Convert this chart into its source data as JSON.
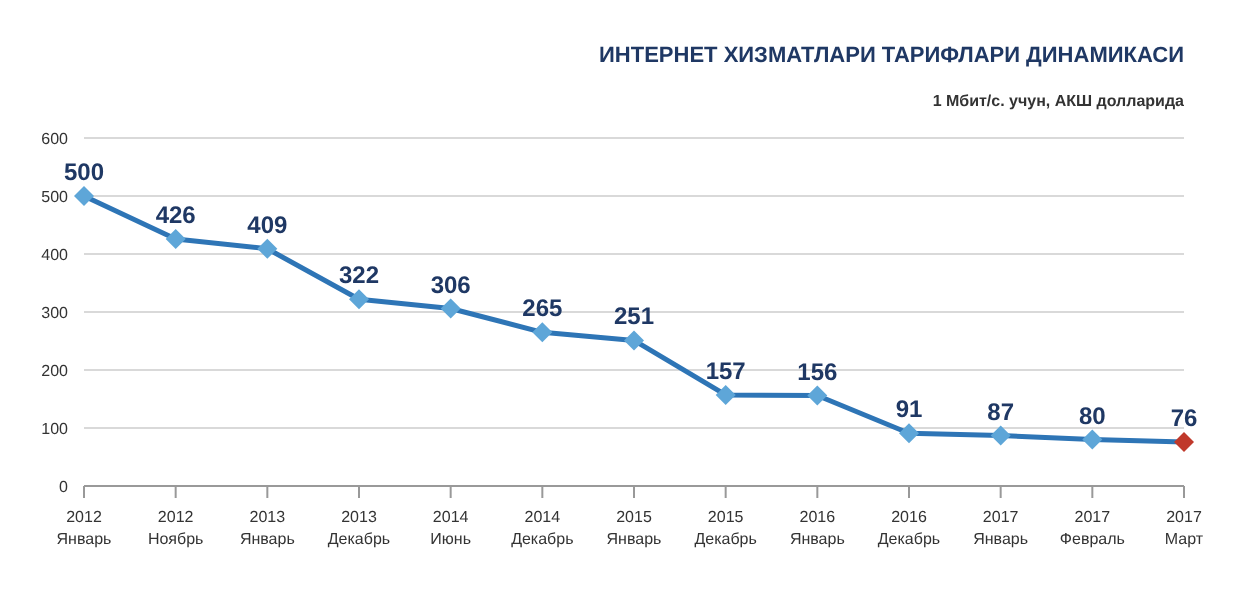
{
  "chart_data": {
    "type": "line",
    "title": "ИНТЕРНЕТ ХИЗМАТЛАРИ ТАРИФЛАРИ ДИНАМИКАСИ",
    "subtitle": "1 Мбит/с. учун, АКШ долларида",
    "categories": [
      "2012 Январь",
      "2012 Ноябрь",
      "2013 Январь",
      "2013 Декабрь",
      "2014 Июнь",
      "2014 Декабрь",
      "2015 Январь",
      "2015 Декабрь",
      "2016 Январь",
      "2016 Декабрь",
      "2017 Январь",
      "2017 Февраль",
      "2017 Март"
    ],
    "series": [
      {
        "color": "#2e75b6",
        "values": [
          500,
          426,
          409,
          322,
          306,
          265,
          251,
          157,
          156,
          91,
          87,
          80,
          76
        ],
        "colors": [
          "#5ea6d8",
          "#5ea6d8",
          "#5ea6d8",
          "#5ea6d8",
          "#5ea6d8",
          "#5ea6d8",
          "#5ea6d8",
          "#5ea6d8",
          "#5ea6d8",
          "#5ea6d8",
          "#5ea6d8",
          "#5ea6d8",
          "#c0392b"
        ]
      }
    ],
    "ylim": [
      0,
      600
    ],
    "yticks": [
      0,
      100,
      200,
      300,
      400,
      500,
      600
    ],
    "grid": "y",
    "marker": "diamond",
    "line_style": "solid",
    "data_labels": true,
    "legend": false
  }
}
